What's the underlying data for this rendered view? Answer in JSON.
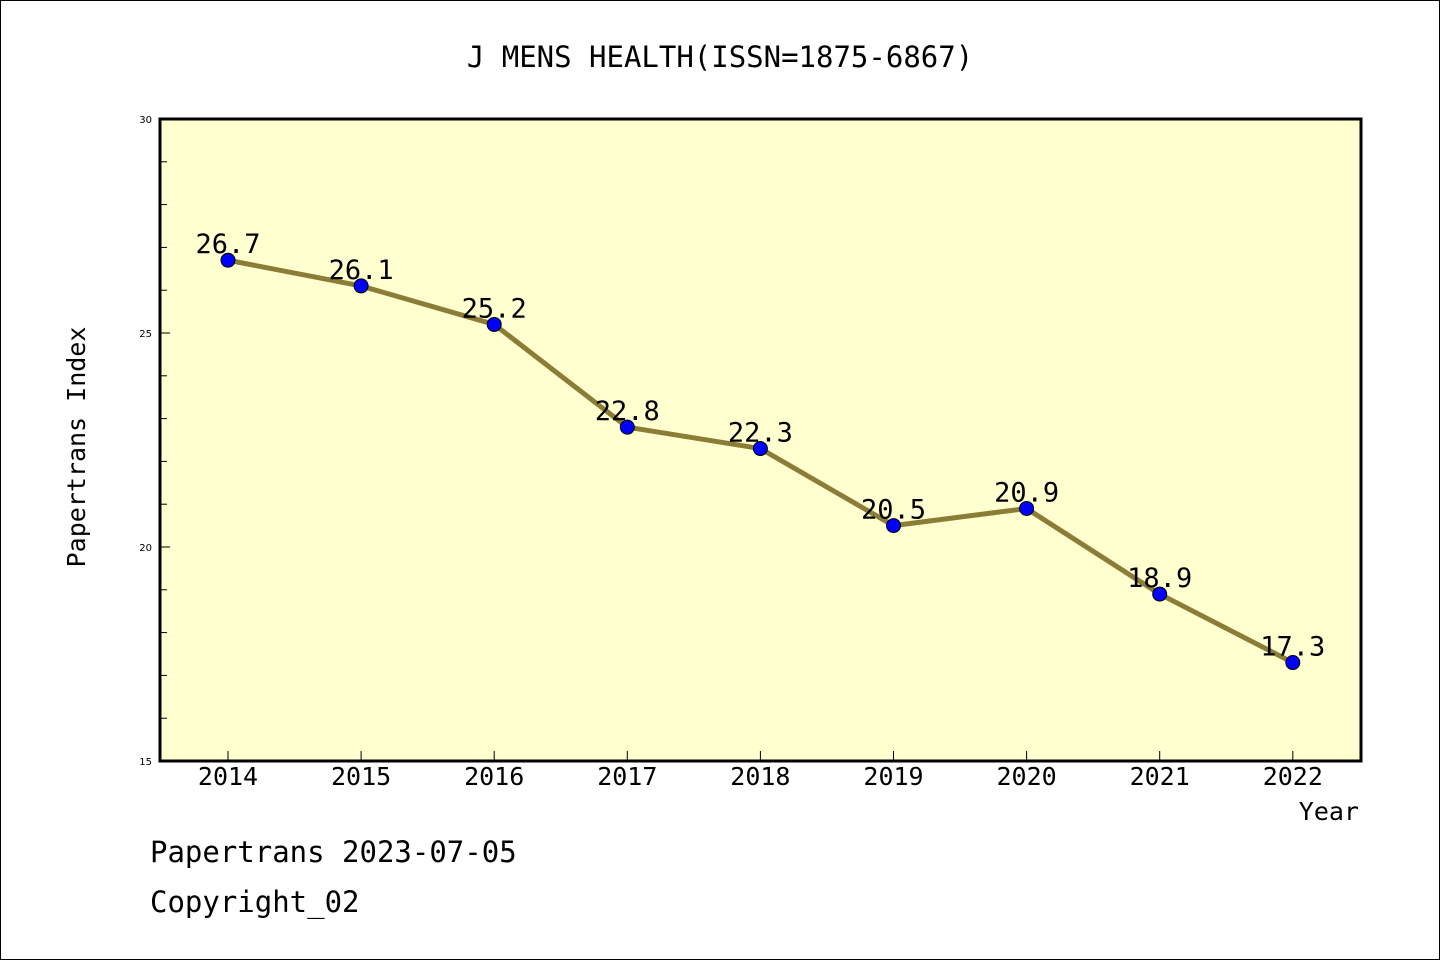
{
  "chart_data": {
    "type": "line",
    "title": "J MENS HEALTH(ISSN=1875-6867)",
    "xlabel": "Year",
    "ylabel": "Papertrans Index",
    "categories": [
      "2014",
      "2015",
      "2016",
      "2017",
      "2018",
      "2019",
      "2020",
      "2021",
      "2022"
    ],
    "series": [
      {
        "values": [
          26.7,
          26.1,
          25.2,
          22.8,
          22.3,
          20.5,
          20.9,
          18.9,
          17.3
        ],
        "labels": [
          "26.7",
          "26.1",
          "25.2",
          "22.8",
          "22.3",
          "20.5",
          "20.9",
          "18.9",
          "17.3"
        ]
      }
    ],
    "ylim": [
      15,
      30
    ],
    "yticks": [
      15,
      20,
      25,
      30
    ],
    "ytick_labels": [
      "15",
      "20",
      "25",
      "30"
    ],
    "grid": false,
    "legend": "none",
    "colors": {
      "plot_background": "#ffffd0",
      "line": "#8b7d35",
      "marker": "#0000ff",
      "axis": "#000000"
    }
  },
  "footer": {
    "line1": "Papertrans 2023-07-05",
    "line2": "Copyright_02"
  }
}
